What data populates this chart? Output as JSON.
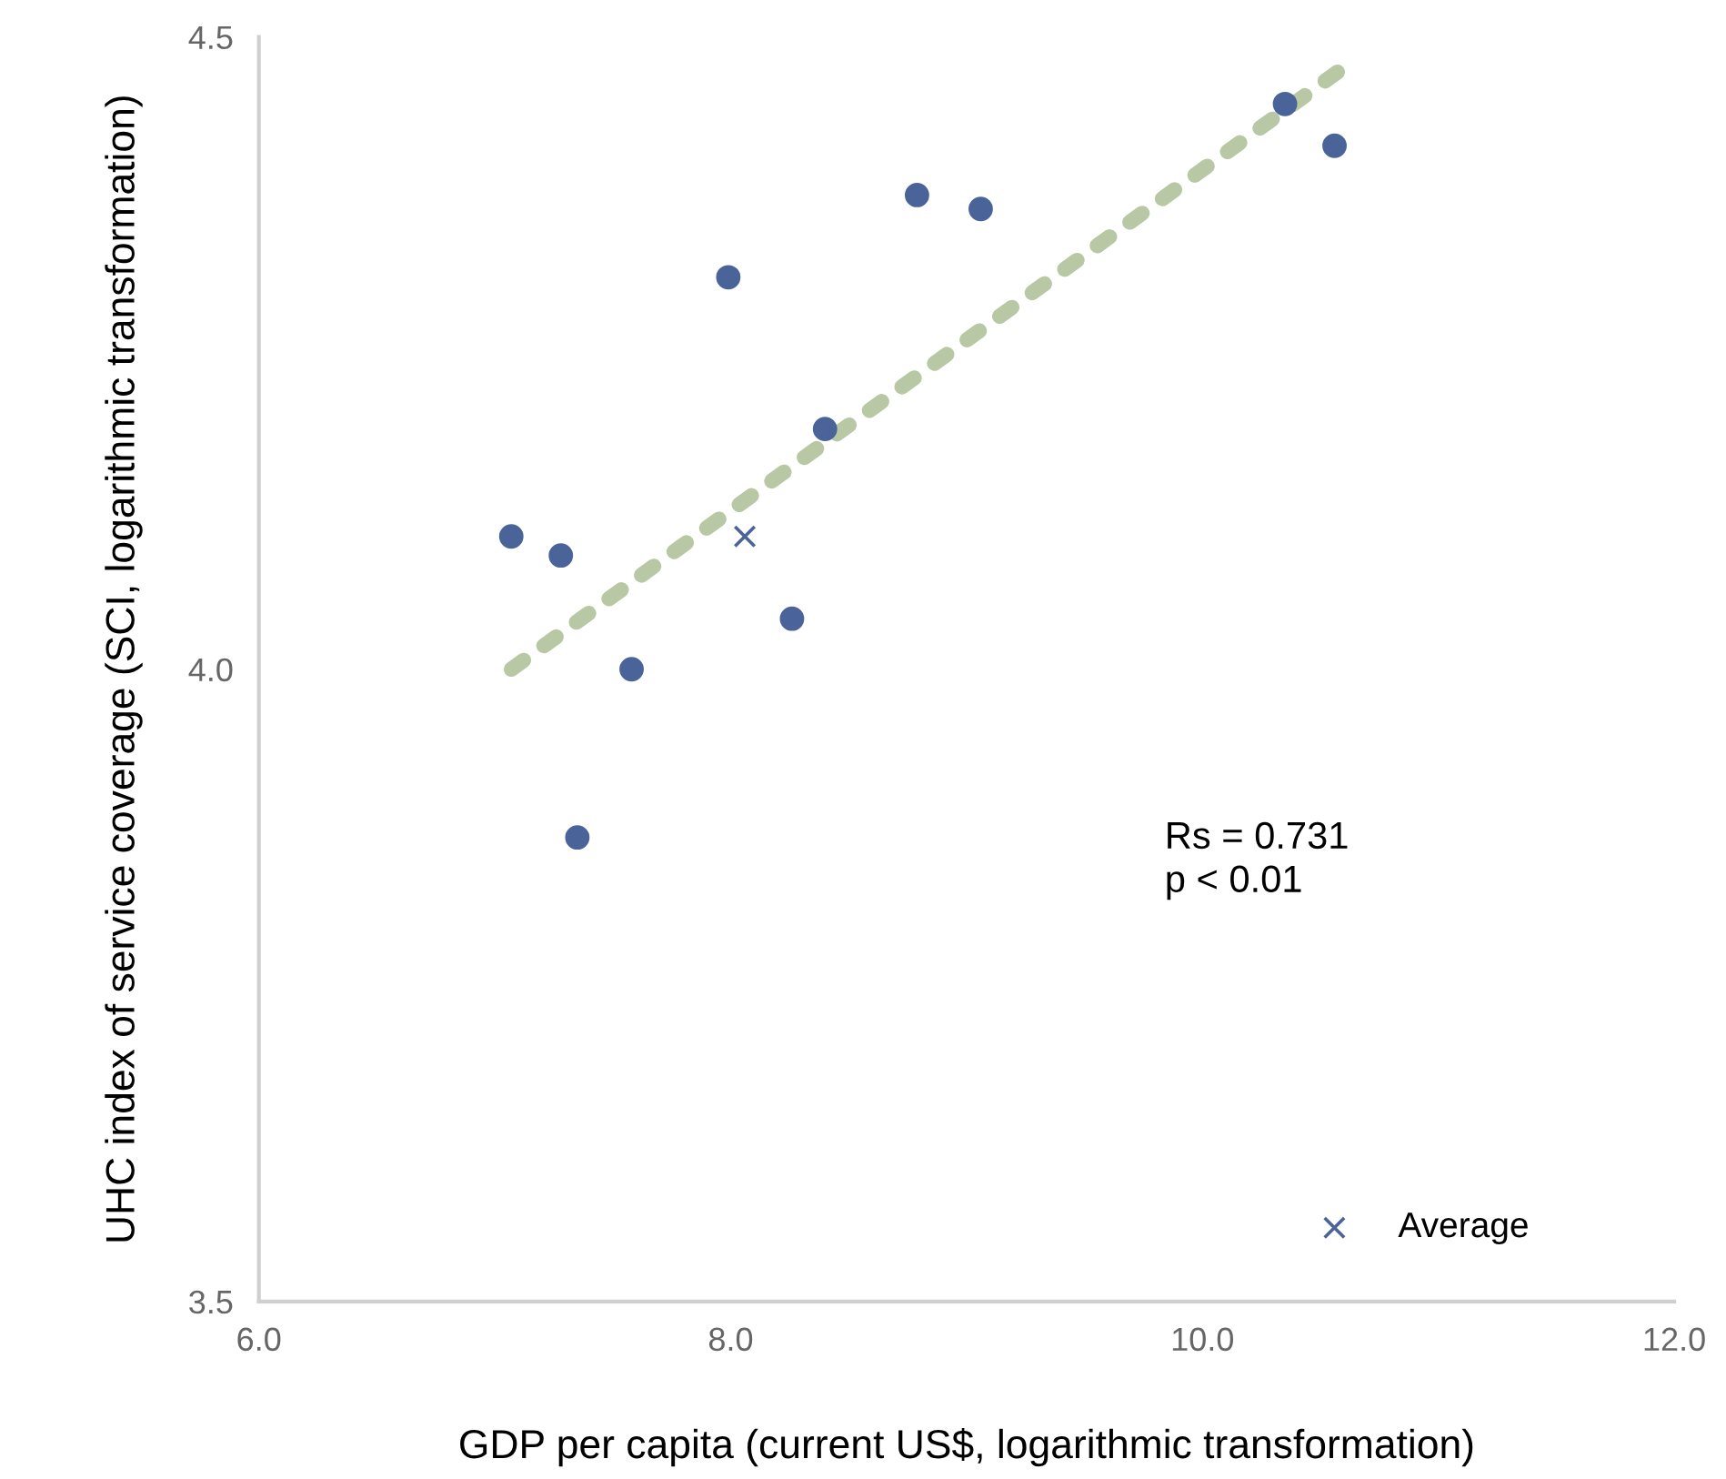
{
  "chart_data": {
    "type": "scatter",
    "xlabel": "GDP per capita (current US$, logarithmic transformation)",
    "ylabel": "UHC index of service coverage (SCI, logarithmic transformation)",
    "xlim": [
      6.0,
      12.0
    ],
    "xticks": [
      {
        "value": 6,
        "label": "6.0"
      },
      {
        "value": 8,
        "label": "8.0"
      },
      {
        "value": 10,
        "label": "10.0"
      },
      {
        "value": 12,
        "label": "12.0"
      }
    ],
    "ylim": [
      3.5,
      4.5
    ],
    "yticks": [
      {
        "value": 3.5,
        "label": "3.5"
      },
      {
        "value": 4.0,
        "label": "4.0"
      },
      {
        "value": 4.5,
        "label": "4.5"
      }
    ],
    "grid": false,
    "legend": "bottom right",
    "series": [
      {
        "type": "line",
        "color": "#b8c8a4",
        "line_style": "dotted",
        "marker": "none",
        "x": [
          7.07,
          10.63
        ],
        "values": [
          4.0,
          4.48
        ]
      },
      {
        "color": "#4a6499",
        "marker": "circle",
        "x": [
          7.07,
          7.28,
          7.58,
          7.35,
          7.99,
          8.26,
          8.4,
          8.79,
          9.06,
          10.35,
          10.56
        ],
        "values": [
          4.105,
          4.09,
          4.0,
          3.867,
          4.31,
          4.04,
          4.19,
          4.375,
          4.364,
          4.447,
          4.414
        ]
      },
      {
        "name": "Average",
        "color": "#4a6499",
        "marker": "cross",
        "x": [
          8.06
        ],
        "values": [
          4.105
        ]
      }
    ],
    "annotations": [
      "Rs = 0.731\np < 0.01"
    ]
  }
}
